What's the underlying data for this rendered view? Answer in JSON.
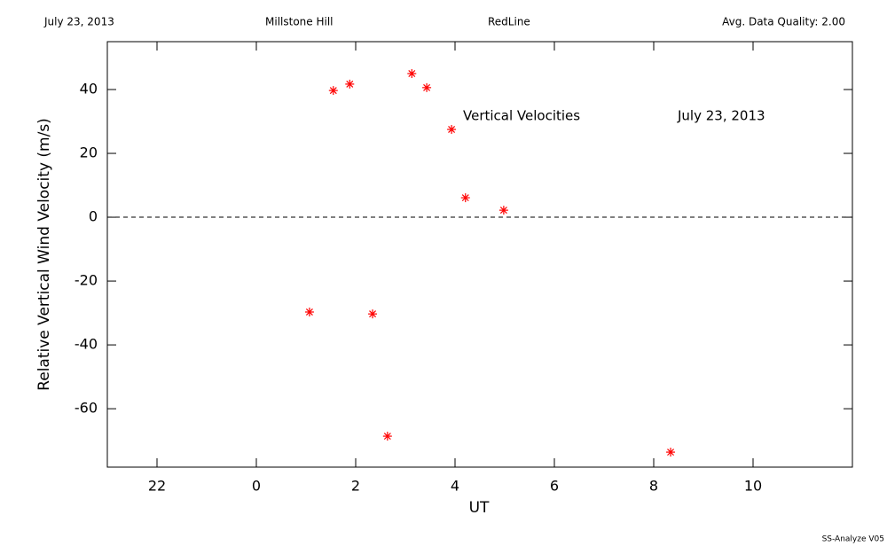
{
  "header": {
    "date": "July 23, 2013",
    "site": "Millstone Hill",
    "instrument": "RedLine",
    "quality": "Avg. Data Quality: 2.00"
  },
  "footer": "SS-Analyze V05",
  "chart_data": {
    "type": "scatter",
    "x_label": "UT",
    "y_label": "Relative Vertical Wind Velocity (m/s)",
    "annotations": [
      "Vertical Velocities",
      "July 23, 2013"
    ],
    "xlim": [
      21,
      36
    ],
    "ylim": [
      -78.3,
      55
    ],
    "xticks": [
      22,
      {
        "value": 24,
        "label": "0"
      },
      {
        "value": 26,
        "label": "2"
      },
      {
        "value": 28,
        "label": "4"
      },
      {
        "value": 30,
        "label": "6"
      },
      {
        "value": 32,
        "label": "8"
      },
      {
        "value": 34,
        "label": "10"
      }
    ],
    "yticks": [
      -60,
      -40,
      -20,
      0,
      20,
      40
    ],
    "reference_line": {
      "y": 0,
      "style": "dashed"
    },
    "series": [
      {
        "color": "#ff0000",
        "x": [
          25.07,
          25.55,
          25.88,
          26.34,
          26.64,
          27.13,
          27.43,
          27.93,
          28.21,
          28.98,
          32.34
        ],
        "values": [
          -29.7,
          39.7,
          41.7,
          -30.3,
          -68.6,
          45,
          40.6,
          27.5,
          6.1,
          2.2,
          -73.6
        ]
      }
    ]
  }
}
